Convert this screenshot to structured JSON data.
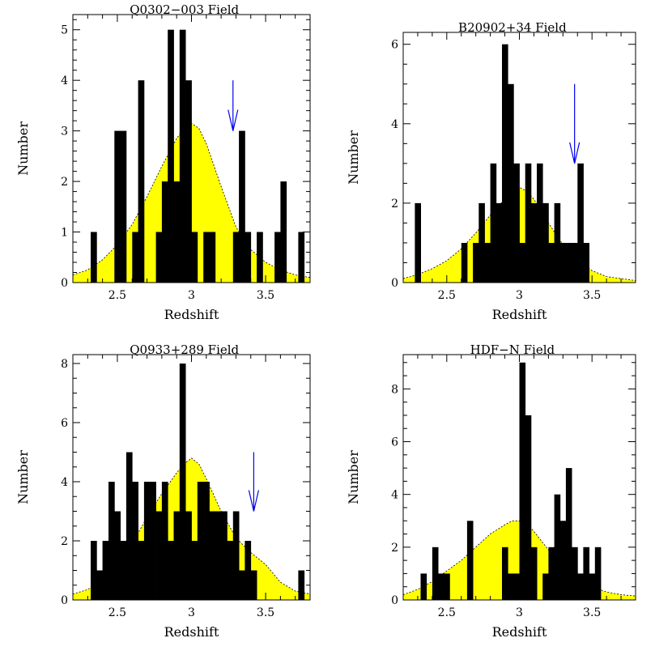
{
  "colors": {
    "histogram": "#000000",
    "model_fill": "#ffff00",
    "arrow": "#0000ee"
  },
  "chart_data": [
    {
      "type": "bar",
      "title": "Q0302−003 Field",
      "xlabel": "Redshift",
      "ylabel": "Number",
      "xlim": [
        2.2,
        3.8
      ],
      "ylim": [
        0,
        5.3
      ],
      "xticks": [
        "2.5",
        "3",
        "3.5"
      ],
      "xtick_values": [
        2.5,
        3,
        3.5
      ],
      "yticks": [
        "0",
        "1",
        "2",
        "3",
        "4",
        "5"
      ],
      "ytick_values": [
        0,
        1,
        2,
        3,
        4,
        5
      ],
      "bin_start": 2.2,
      "bin_width": 0.04,
      "values": [
        0,
        0,
        0,
        1,
        0,
        0,
        0,
        3,
        3,
        0,
        1,
        4,
        0,
        0,
        1,
        2,
        5,
        2,
        5,
        4,
        1,
        0,
        1,
        1,
        0,
        0,
        0,
        1,
        3,
        1,
        0,
        1,
        0,
        0,
        1,
        2,
        0,
        0,
        1,
        0
      ],
      "model_curve": {
        "x": [
          2.2,
          2.3,
          2.4,
          2.5,
          2.6,
          2.7,
          2.8,
          2.9,
          2.95,
          3.0,
          3.05,
          3.1,
          3.2,
          3.3,
          3.4,
          3.5,
          3.6,
          3.7,
          3.8
        ],
        "y": [
          0.15,
          0.25,
          0.45,
          0.75,
          1.15,
          1.7,
          2.3,
          2.85,
          3.05,
          3.15,
          3.05,
          2.75,
          1.9,
          1.1,
          0.65,
          0.4,
          0.25,
          0.15,
          0.1
        ]
      },
      "arrow_at": {
        "x": 3.28,
        "y_top": 4.0,
        "y_tip": 3.0
      }
    },
    {
      "type": "bar",
      "title": "B20902+34 Field",
      "xlabel": "Redshift",
      "ylabel": "Number",
      "xlim": [
        2.2,
        3.8
      ],
      "ylim": [
        0,
        6.3
      ],
      "xticks": [
        "2.5",
        "3",
        "3.5"
      ],
      "xtick_values": [
        2.5,
        3,
        3.5
      ],
      "yticks": [
        "0",
        "2",
        "4",
        "6"
      ],
      "ytick_values": [
        0,
        2,
        4,
        6
      ],
      "bin_start": 2.2,
      "bin_width": 0.04,
      "values": [
        0,
        0,
        2,
        0,
        0,
        0,
        0,
        0,
        0,
        0,
        1,
        0,
        1,
        2,
        1,
        3,
        2,
        6,
        5,
        3,
        1,
        3,
        2,
        3,
        2,
        1,
        2,
        1,
        1,
        1,
        3,
        1,
        0,
        0,
        0,
        0,
        0,
        0,
        0,
        0
      ],
      "model_curve": {
        "x": [
          2.2,
          2.3,
          2.4,
          2.5,
          2.6,
          2.7,
          2.8,
          2.9,
          2.95,
          3.0,
          3.05,
          3.1,
          3.2,
          3.3,
          3.4,
          3.5,
          3.6,
          3.7,
          3.8
        ],
        "y": [
          0.1,
          0.2,
          0.35,
          0.55,
          0.85,
          1.25,
          1.7,
          2.1,
          2.3,
          2.4,
          2.3,
          2.1,
          1.5,
          0.95,
          0.55,
          0.3,
          0.15,
          0.1,
          0.05
        ]
      },
      "arrow_at": {
        "x": 3.38,
        "y_top": 5.0,
        "y_tip": 3.0
      }
    },
    {
      "type": "bar",
      "title": "Q0933+289 Field",
      "xlabel": "Redshift",
      "ylabel": "Number",
      "xlim": [
        2.2,
        3.8
      ],
      "ylim": [
        0,
        8.3
      ],
      "xticks": [
        "2.5",
        "3",
        "3.5"
      ],
      "xtick_values": [
        2.5,
        3,
        3.5
      ],
      "yticks": [
        "0",
        "2",
        "4",
        "6",
        "8"
      ],
      "ytick_values": [
        0,
        2,
        4,
        6,
        8
      ],
      "bin_start": 2.2,
      "bin_width": 0.04,
      "values": [
        0,
        0,
        0,
        2,
        1,
        2,
        4,
        3,
        2,
        5,
        4,
        2,
        4,
        4,
        3,
        4,
        2,
        3,
        8,
        3,
        2,
        4,
        4,
        3,
        3,
        3,
        2,
        3,
        1,
        2,
        1,
        0,
        0,
        0,
        0,
        0,
        0,
        0,
        1,
        0
      ],
      "model_curve": {
        "x": [
          2.2,
          2.3,
          2.4,
          2.5,
          2.6,
          2.7,
          2.8,
          2.9,
          2.95,
          3.0,
          3.05,
          3.1,
          3.2,
          3.3,
          3.4,
          3.5,
          3.6,
          3.7,
          3.8
        ],
        "y": [
          0.2,
          0.35,
          0.7,
          1.2,
          1.9,
          2.8,
          3.6,
          4.3,
          4.6,
          4.8,
          4.6,
          4.1,
          3.0,
          2.1,
          1.6,
          1.2,
          0.6,
          0.3,
          0.2
        ]
      },
      "arrow_at": {
        "x": 3.42,
        "y_top": 5.0,
        "y_tip": 3.0
      }
    },
    {
      "type": "bar",
      "title": "HDF−N Field",
      "xlabel": "Redshift",
      "ylabel": "Number",
      "xlim": [
        2.2,
        3.8
      ],
      "ylim": [
        0,
        9.3
      ],
      "xticks": [
        "2.5",
        "3",
        "3.5"
      ],
      "xtick_values": [
        2.5,
        3,
        3.5
      ],
      "yticks": [
        "0",
        "2",
        "4",
        "6",
        "8"
      ],
      "ytick_values": [
        0,
        2,
        4,
        6,
        8
      ],
      "bin_start": 2.2,
      "bin_width": 0.04,
      "values": [
        0,
        0,
        0,
        1,
        0,
        2,
        1,
        1,
        0,
        0,
        0,
        3,
        0,
        0,
        0,
        0,
        0,
        2,
        1,
        1,
        9,
        7,
        2,
        0,
        1,
        2,
        4,
        3,
        5,
        2,
        1,
        2,
        1,
        2,
        0,
        0,
        0,
        0,
        0,
        0
      ],
      "model_curve": {
        "x": [
          2.2,
          2.3,
          2.4,
          2.5,
          2.6,
          2.7,
          2.8,
          2.9,
          2.95,
          3.0,
          3.05,
          3.1,
          3.2,
          3.3,
          3.4,
          3.5,
          3.6,
          3.7,
          3.8
        ],
        "y": [
          0.2,
          0.4,
          0.7,
          1.1,
          1.5,
          2.0,
          2.5,
          2.85,
          3.0,
          3.0,
          2.9,
          2.6,
          1.9,
          1.3,
          0.8,
          0.5,
          0.3,
          0.2,
          0.15
        ]
      }
    }
  ]
}
